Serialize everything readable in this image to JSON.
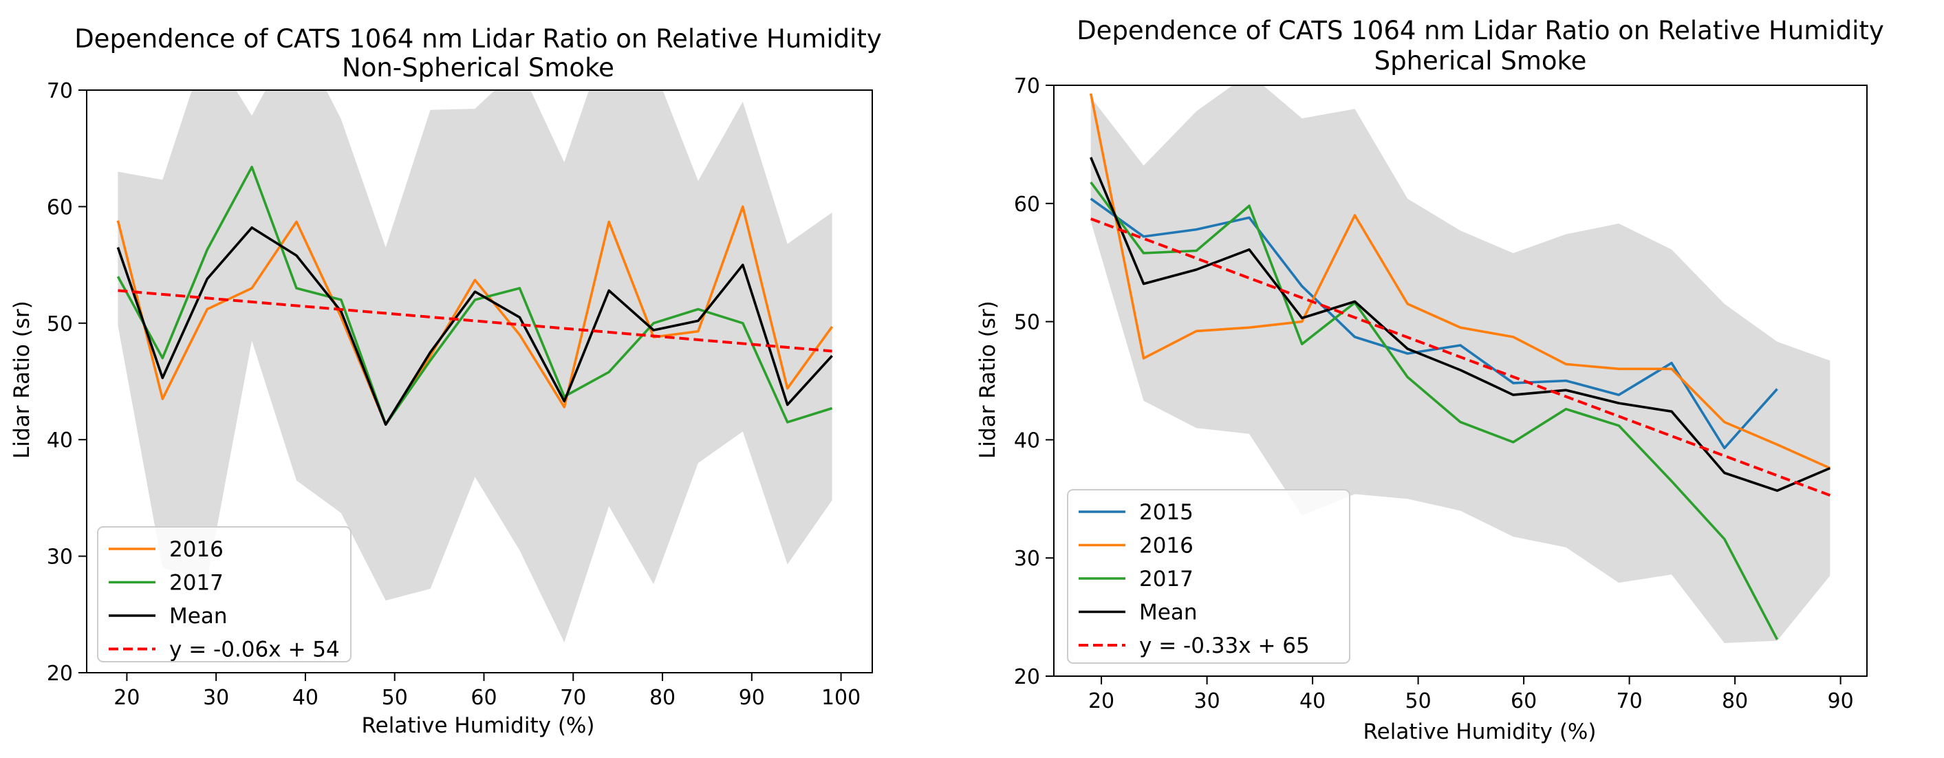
{
  "chart_data": [
    {
      "type": "line",
      "title": "Dependence of CATS 1064 nm Lidar Ratio on Relative Humidity",
      "subtitle": "Non-Spherical Smoke",
      "xlabel": "Relative Humidity (%)",
      "ylabel": "Lidar Ratio (sr)",
      "xlim": [
        15.5,
        103.5
      ],
      "ylim": [
        20,
        70
      ],
      "xticks": [
        20,
        30,
        40,
        50,
        60,
        70,
        80,
        90,
        100
      ],
      "yticks": [
        20,
        30,
        40,
        50,
        60,
        70
      ],
      "legend_position": "lower-left",
      "band": {
        "x": [
          19,
          24,
          29,
          34,
          39,
          44,
          49,
          54,
          59,
          64,
          69,
          74,
          79,
          84,
          89,
          94,
          99
        ],
        "upper": [
          63,
          62.3,
          74,
          67.8,
          75,
          67.5,
          56.5,
          68.3,
          68.4,
          72,
          63.8,
          75,
          72,
          62.2,
          69,
          56.8,
          59.5
        ],
        "lower": [
          49.8,
          29,
          28,
          48.5,
          36.5,
          33.7,
          26.2,
          27.2,
          36.8,
          30.5,
          22.6,
          34.3,
          27.6,
          38,
          40.7,
          29.3,
          34.8
        ]
      },
      "series": [
        {
          "name": "2016",
          "color": "#ff7f0e",
          "x": [
            19,
            24,
            29,
            34,
            39,
            44,
            49,
            54,
            59,
            64,
            69,
            74,
            79,
            84,
            89,
            94,
            99
          ],
          "y": [
            58.8,
            43.5,
            51.2,
            53,
            58.7,
            50.5,
            41.3,
            47.2,
            53.7,
            49,
            42.8,
            58.7,
            48.8,
            49.3,
            60,
            44.4,
            49.7
          ]
        },
        {
          "name": "2017",
          "color": "#2ca02c",
          "x": [
            19,
            24,
            29,
            34,
            39,
            44,
            49,
            54,
            59,
            64,
            69,
            74,
            79,
            84,
            89,
            94,
            99
          ],
          "y": [
            54,
            47,
            56.3,
            63.4,
            53,
            52,
            41.3,
            46.8,
            52,
            53,
            43.7,
            45.8,
            50,
            51.2,
            50,
            41.5,
            42.7
          ]
        },
        {
          "name": "Mean",
          "color": "#000000",
          "x": [
            19,
            24,
            29,
            34,
            39,
            44,
            49,
            54,
            59,
            64,
            69,
            74,
            79,
            84,
            89,
            94,
            99
          ],
          "y": [
            56.5,
            45.3,
            53.8,
            58.2,
            55.8,
            51,
            41.3,
            47.5,
            52.7,
            50.5,
            43.3,
            52.8,
            49.4,
            50.2,
            55,
            43,
            47.2
          ]
        },
        {
          "name": "y = -0.06x + 54",
          "color": "#ff0000",
          "dashed": true,
          "x": [
            19,
            99
          ],
          "y": [
            52.8,
            47.6
          ]
        }
      ]
    },
    {
      "type": "line",
      "title": "Dependence of CATS 1064 nm Lidar Ratio on Relative Humidity",
      "subtitle": "Spherical Smoke",
      "xlabel": "Relative Humidity (%)",
      "ylabel": "Lidar Ratio (sr)",
      "xlim": [
        15.5,
        92.5
      ],
      "ylim": [
        20,
        70
      ],
      "xticks": [
        20,
        30,
        40,
        50,
        60,
        70,
        80,
        90
      ],
      "yticks": [
        20,
        30,
        40,
        50,
        60,
        70
      ],
      "legend_position": "lower-left",
      "band": {
        "x": [
          19,
          24,
          29,
          34,
          39,
          44,
          49,
          54,
          59,
          64,
          69,
          74,
          79,
          84,
          89
        ],
        "upper": [
          69,
          63.2,
          67.8,
          71,
          67.2,
          68,
          60.4,
          57.7,
          55.8,
          57.4,
          58.3,
          56.1,
          51.5,
          48.3,
          46.7
        ],
        "lower": [
          58.5,
          43.3,
          41,
          40.5,
          33.6,
          35.4,
          35,
          34,
          31.8,
          30.9,
          27.9,
          28.6,
          22.8,
          23,
          28.5
        ]
      },
      "series": [
        {
          "name": "2015",
          "color": "#1f77b4",
          "x": [
            19,
            24,
            29,
            34,
            39,
            44,
            49,
            54,
            59,
            64,
            69,
            74,
            79,
            84
          ],
          "y": [
            60.4,
            57.2,
            57.8,
            58.8,
            53,
            48.7,
            47.3,
            48,
            44.8,
            45,
            43.8,
            46.5,
            39.3,
            44.3
          ]
        },
        {
          "name": "2016",
          "color": "#ff7f0e",
          "x": [
            19,
            24,
            29,
            34,
            39,
            44,
            49,
            54,
            59,
            64,
            69,
            74,
            79,
            84,
            89
          ],
          "y": [
            69.3,
            46.9,
            49.2,
            49.5,
            50,
            59,
            51.5,
            49.5,
            48.7,
            46.4,
            46,
            46,
            41.5,
            39.6,
            37.6
          ]
        },
        {
          "name": "2017",
          "color": "#2ca02c",
          "x": [
            19,
            24,
            29,
            34,
            39,
            44,
            49,
            54,
            59,
            64,
            69,
            74,
            79,
            84
          ],
          "y": [
            61.8,
            55.8,
            56,
            59.8,
            48.1,
            51.6,
            45.3,
            41.5,
            39.8,
            42.6,
            41.2,
            36.5,
            31.6,
            23.1
          ]
        },
        {
          "name": "Mean",
          "color": "#000000",
          "x": [
            19,
            24,
            29,
            34,
            39,
            44,
            49,
            54,
            59,
            64,
            69,
            74,
            79,
            84,
            89
          ],
          "y": [
            63.9,
            53.2,
            54.4,
            56.1,
            50.3,
            51.7,
            47.7,
            45.9,
            43.8,
            44.2,
            43.1,
            42.4,
            37.2,
            35.7,
            37.6
          ]
        },
        {
          "name": "y = -0.33x + 65",
          "color": "#ff0000",
          "dashed": true,
          "x": [
            19,
            89
          ],
          "y": [
            58.7,
            35.3
          ]
        }
      ]
    }
  ]
}
